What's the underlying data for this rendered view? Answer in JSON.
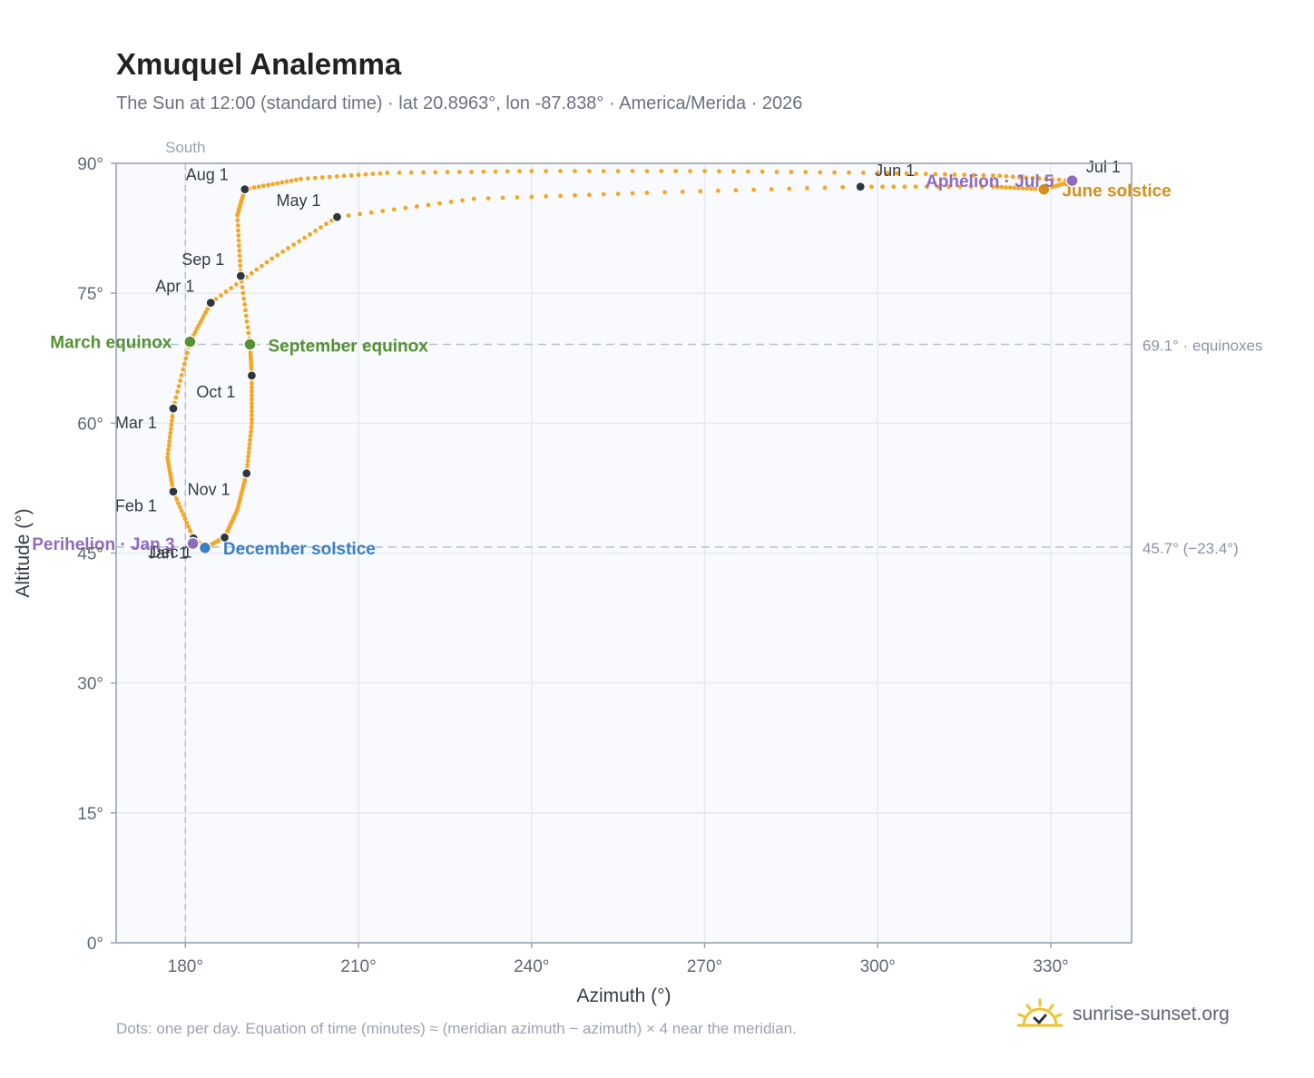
{
  "title": "Xmuquel Analemma",
  "subtitle": "The Sun at 12:00 (standard time) · lat 20.8963°, lon -87.838° · America/Merida · 2026",
  "footnote": "Dots: one per day. Equation of time (minutes) ≈ (meridian azimuth − azimuth) × 4 near the meridian.",
  "brand": {
    "text": "sunrise-sunset.org",
    "icon": "sun-logo-icon"
  },
  "colors": {
    "curve": "#f5a623",
    "month_dot": "#2f3640",
    "march_equinox": "#559133",
    "september_equinox": "#559133",
    "december_solstice": "#3b7fc4",
    "june_solstice": "#d4901a",
    "perihelion": "#8e6bbf",
    "aphelion": "#8e6bbf",
    "plot_bg": "#f8fafd",
    "grid": "#e5e9f0",
    "axis": "#9aa3b0"
  },
  "chart_data": {
    "type": "scatter",
    "xlabel": "Azimuth (°)",
    "ylabel": "Altitude (°)",
    "xlim": [
      168,
      344
    ],
    "ylim": [
      0,
      90
    ],
    "x_ticks": [
      "180°",
      "210°",
      "240°",
      "270°",
      "300°",
      "330°"
    ],
    "x_tick_values": [
      180,
      210,
      240,
      270,
      300,
      330
    ],
    "y_ticks": [
      "0°",
      "15°",
      "30°",
      "45°",
      "60°",
      "75°",
      "90°"
    ],
    "y_tick_values": [
      0,
      15,
      30,
      45,
      60,
      75,
      90
    ],
    "grid": true,
    "meridian": {
      "x": 180,
      "label": "South"
    },
    "reference_lines": [
      {
        "y": 69.1,
        "label": "69.1° · equinoxes"
      },
      {
        "y": 45.7,
        "label": "45.7° (−23.4°)"
      }
    ],
    "month_markers": [
      {
        "label": "Jan 1",
        "x": 181.4,
        "y": 46.7
      },
      {
        "label": "Feb 1",
        "x": 177.9,
        "y": 52.1
      },
      {
        "label": "Mar 1",
        "x": 177.9,
        "y": 61.7
      },
      {
        "label": "Apr 1",
        "x": 184.4,
        "y": 73.9
      },
      {
        "label": "May 1",
        "x": 206.3,
        "y": 83.8
      },
      {
        "label": "Jun 1",
        "x": 297.0,
        "y": 87.3
      },
      {
        "label": "Jul 1",
        "x": 333.6,
        "y": 87.9
      },
      {
        "label": "Aug 1",
        "x": 190.3,
        "y": 87.0
      },
      {
        "label": "Sep 1",
        "x": 189.6,
        "y": 77.0
      },
      {
        "label": "Oct 1",
        "x": 191.5,
        "y": 65.5
      },
      {
        "label": "Nov 1",
        "x": 190.6,
        "y": 54.2
      },
      {
        "label": "Dec 1",
        "x": 186.8,
        "y": 46.8
      }
    ],
    "events": [
      {
        "label": "March equinox",
        "x": 180.8,
        "y": 69.4,
        "color_key": "march_equinox"
      },
      {
        "label": "September equinox",
        "x": 191.2,
        "y": 69.1,
        "color_key": "september_equinox"
      },
      {
        "label": "December solstice",
        "x": 183.4,
        "y": 45.6,
        "color_key": "december_solstice"
      },
      {
        "label": "June solstice",
        "x": 328.8,
        "y": 87.0,
        "color_key": "june_solstice"
      },
      {
        "label": "Perihelion · Jan 3",
        "x": 181.3,
        "y": 46.1,
        "color_key": "perihelion"
      },
      {
        "label": "Aphelion · Jul 5",
        "x": 333.7,
        "y": 88.0,
        "color_key": "aphelion"
      }
    ],
    "curve": {
      "description": "one dot per day",
      "x": [
        181.4,
        177.9,
        176.9,
        177.9,
        180.8,
        184.4,
        195.0,
        206.3,
        230.0,
        260.0,
        297.0,
        320.0,
        328.8,
        333.6,
        333.7,
        320.0,
        300.0,
        270.0,
        240.0,
        215.0,
        200.0,
        190.3,
        189.0,
        189.6,
        191.2,
        191.5,
        191.5,
        190.6,
        189.0,
        186.8,
        183.4,
        181.4
      ],
      "y": [
        46.7,
        52.1,
        56.0,
        61.7,
        69.4,
        73.9,
        79.0,
        83.8,
        85.9,
        86.6,
        87.3,
        87.3,
        87.0,
        87.9,
        88.0,
        88.6,
        88.9,
        89.1,
        89.1,
        88.9,
        88.2,
        87.0,
        84.0,
        77.0,
        69.1,
        65.5,
        60.0,
        54.2,
        50.0,
        46.8,
        45.6,
        46.7
      ]
    }
  }
}
